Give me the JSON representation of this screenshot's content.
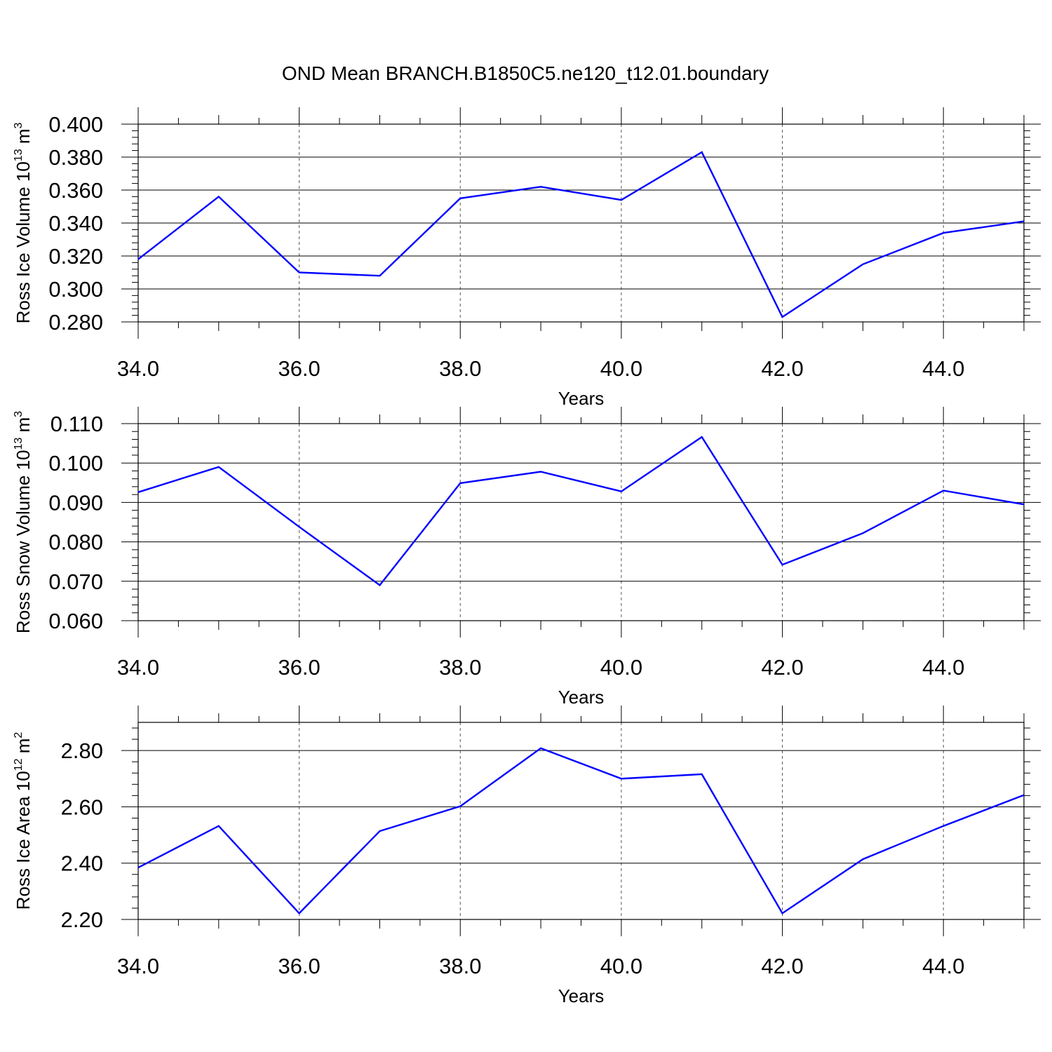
{
  "title": "OND Mean BRANCH.B1850C5.ne120_t12.01.boundary",
  "line_color": "#0000ff",
  "chart_data": [
    {
      "type": "line",
      "xlabel": "Years",
      "ylabel": "Ross Ice Volume 10",
      "ylabel_sup": "13",
      "ylabel_unit": "m",
      "ylabel_unit_sup": "3",
      "xlim": [
        34,
        45
      ],
      "ylim": [
        0.28,
        0.4
      ],
      "x_ticks": [
        "34.0",
        "36.0",
        "38.0",
        "40.0",
        "42.0",
        "44.0"
      ],
      "y_ticks": [
        "0.280",
        "0.300",
        "0.320",
        "0.340",
        "0.360",
        "0.380",
        "0.400"
      ],
      "grid": "vertical dashed at major x ticks",
      "x": [
        34,
        35,
        36,
        37,
        38,
        39,
        40,
        41,
        42,
        43,
        44,
        45
      ],
      "values": [
        0.318,
        0.356,
        0.31,
        0.308,
        0.355,
        0.362,
        0.354,
        0.383,
        0.283,
        0.315,
        0.334,
        0.341
      ]
    },
    {
      "type": "line",
      "xlabel": "Years",
      "ylabel": "Ross Snow Volume 10",
      "ylabel_sup": "13",
      "ylabel_unit": "m",
      "ylabel_unit_sup": "3",
      "xlim": [
        34,
        45
      ],
      "ylim": [
        0.06,
        0.11
      ],
      "x_ticks": [
        "34.0",
        "36.0",
        "38.0",
        "40.0",
        "42.0",
        "44.0"
      ],
      "y_ticks": [
        "0.060",
        "0.070",
        "0.080",
        "0.090",
        "0.100",
        "0.110"
      ],
      "grid": "vertical dashed at major x ticks",
      "x": [
        34,
        35,
        36,
        37,
        38,
        39,
        40,
        41,
        42,
        43,
        44,
        45
      ],
      "values": [
        0.0926,
        0.099,
        0.0838,
        0.069,
        0.0949,
        0.0978,
        0.0928,
        0.1066,
        0.0742,
        0.0822,
        0.093,
        0.0895
      ]
    },
    {
      "type": "line",
      "xlabel": "Years",
      "ylabel": "Ross Ice Area 10",
      "ylabel_sup": "12",
      "ylabel_unit": "m",
      "ylabel_unit_sup": "2",
      "xlim": [
        34,
        45
      ],
      "ylim": [
        2.2,
        2.9
      ],
      "x_ticks": [
        "34.0",
        "36.0",
        "38.0",
        "40.0",
        "42.0",
        "44.0"
      ],
      "y_ticks": [
        "2.20",
        "2.40",
        "2.60",
        "2.80"
      ],
      "grid": "vertical dashed at major x ticks",
      "x": [
        34,
        35,
        36,
        37,
        38,
        39,
        40,
        41,
        42,
        43,
        44,
        45
      ],
      "values": [
        2.384,
        2.532,
        2.222,
        2.514,
        2.602,
        2.808,
        2.7,
        2.716,
        2.222,
        2.414,
        2.532,
        2.642
      ]
    }
  ]
}
